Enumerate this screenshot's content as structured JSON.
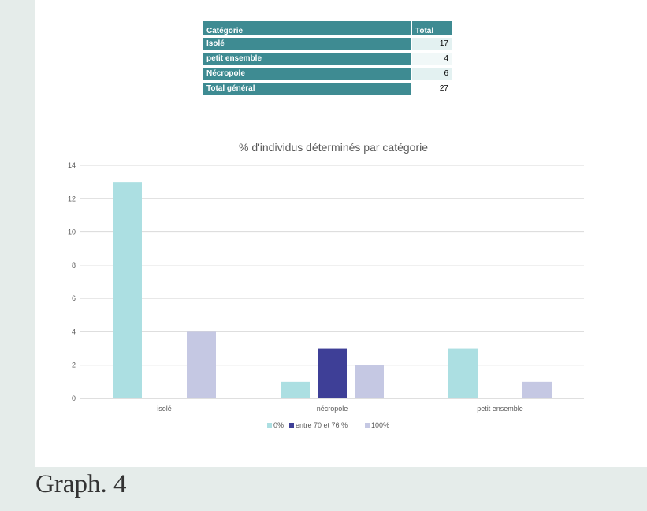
{
  "table": {
    "headers": [
      "Catégorie",
      "Total"
    ],
    "rows": [
      {
        "label": "Isolé",
        "total": "17"
      },
      {
        "label": "petit ensemble",
        "total": "4"
      },
      {
        "label": "Nécropole",
        "total": "6"
      },
      {
        "label": "Total général",
        "total": "27"
      }
    ]
  },
  "chart_data": {
    "type": "bar",
    "title": "% d'individus déterminés par catégorie",
    "categories": [
      "isolé",
      "nécropole",
      "petit ensemble"
    ],
    "series": [
      {
        "name": "0%",
        "values": [
          13,
          1,
          3
        ],
        "color": "#acdfe2"
      },
      {
        "name": "entre 70 et 76 %",
        "values": [
          0,
          3,
          0
        ],
        "color": "#3e3f97"
      },
      {
        "name": "100%",
        "values": [
          4,
          2,
          1
        ],
        "color": "#c5c8e3"
      }
    ],
    "ylim": [
      0,
      14
    ],
    "yticks": [
      0,
      2,
      4,
      6,
      8,
      10,
      12,
      14
    ],
    "grid": true,
    "legend_position": "bottom"
  },
  "caption": "Graph. 4"
}
